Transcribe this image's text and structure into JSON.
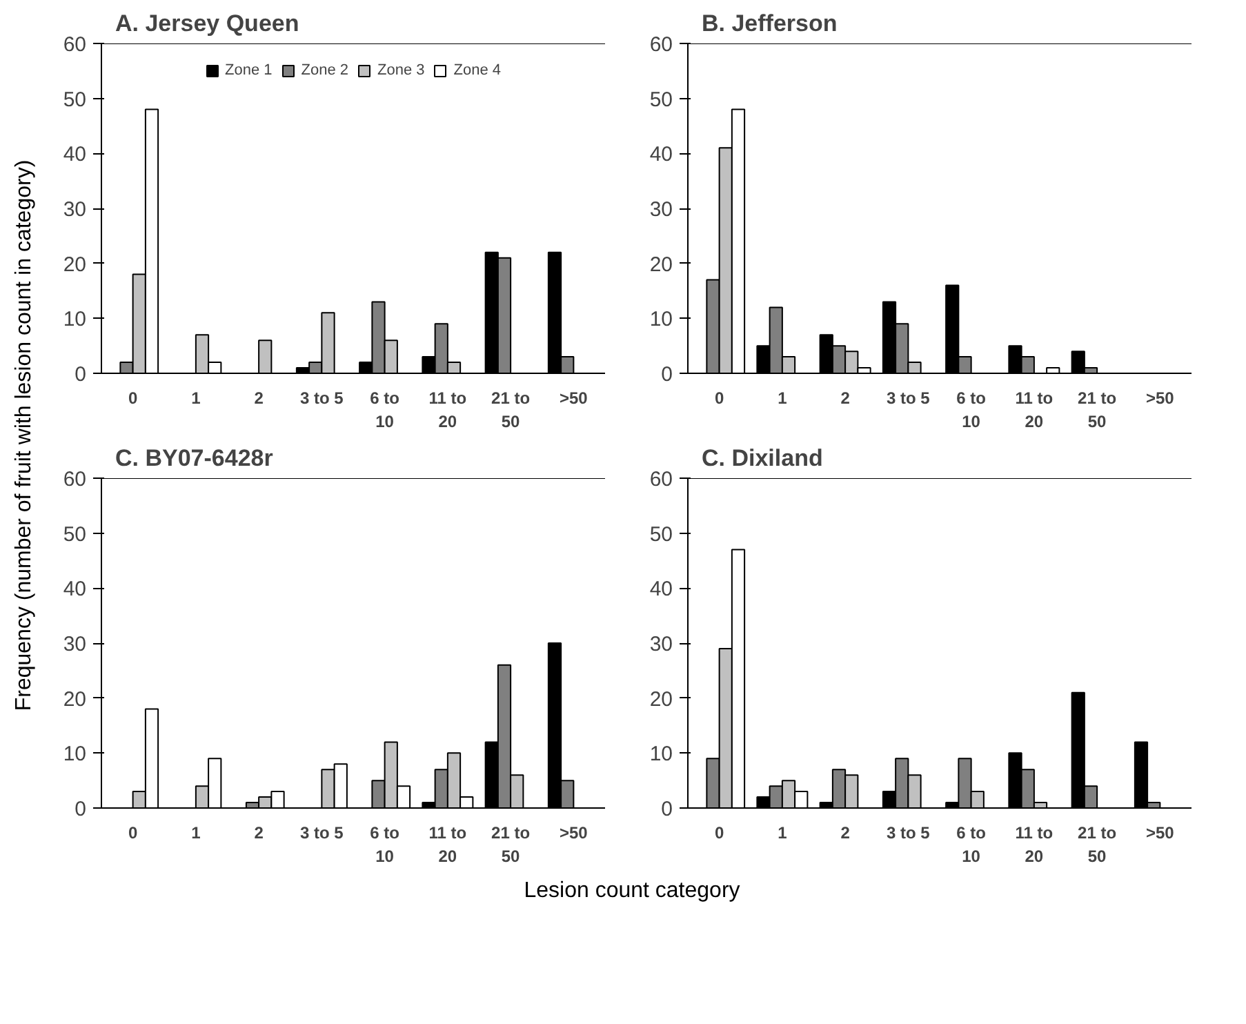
{
  "chart_data": [
    {
      "type": "bar",
      "title": "A.  Jersey Queen",
      "ylabel": "Frequency (number of fruit with lesion count in category)",
      "categories": [
        "0",
        "1",
        "2",
        "3 to 5",
        "6 to 10",
        "11 to 20",
        "21 to 50",
        ">50"
      ],
      "ylim": [
        0,
        60
      ],
      "yticks": [
        0,
        10,
        20,
        30,
        40,
        50,
        60
      ],
      "grid": false,
      "legend": "top",
      "series": [
        {
          "name": "Zone 1",
          "color": "#000000",
          "values": [
            null,
            null,
            null,
            1,
            2,
            3,
            22,
            22
          ]
        },
        {
          "name": "Zone 2",
          "color": "#808080",
          "values": [
            2,
            null,
            null,
            2,
            13,
            9,
            21,
            3
          ]
        },
        {
          "name": "Zone 3",
          "color": "#c0c0c0",
          "values": [
            18,
            7,
            6,
            11,
            6,
            2,
            null,
            null
          ]
        },
        {
          "name": "Zone 4",
          "color": "#ffffff",
          "values": [
            48,
            2,
            null,
            null,
            null,
            null,
            null,
            null
          ]
        }
      ]
    },
    {
      "type": "bar",
      "title": "B. Jefferson",
      "categories": [
        "0",
        "1",
        "2",
        "3 to 5",
        "6 to 10",
        "11 to 20",
        "21 to 50",
        ">50"
      ],
      "ylim": [
        0,
        60
      ],
      "yticks": [
        0,
        10,
        20,
        30,
        40,
        50,
        60
      ],
      "grid": false,
      "series": [
        {
          "color": "#000000",
          "values": [
            null,
            5,
            7,
            13,
            16,
            5,
            4,
            null
          ]
        },
        {
          "color": "#808080",
          "values": [
            17,
            12,
            5,
            9,
            3,
            3,
            1,
            null
          ]
        },
        {
          "color": "#c0c0c0",
          "values": [
            41,
            3,
            4,
            2,
            null,
            null,
            null,
            null
          ]
        },
        {
          "color": "#ffffff",
          "values": [
            48,
            null,
            1,
            null,
            null,
            1,
            null,
            null
          ]
        }
      ]
    },
    {
      "type": "bar",
      "title": "C. BY07-6428r",
      "categories": [
        "0",
        "1",
        "2",
        "3 to 5",
        "6 to 10",
        "11 to 20",
        "21 to 50",
        ">50"
      ],
      "ylim": [
        0,
        60
      ],
      "yticks": [
        0,
        10,
        20,
        30,
        40,
        50,
        60
      ],
      "grid": false,
      "series": [
        {
          "color": "#000000",
          "values": [
            null,
            null,
            null,
            null,
            null,
            1,
            12,
            30
          ]
        },
        {
          "color": "#808080",
          "values": [
            null,
            null,
            1,
            null,
            5,
            7,
            26,
            5
          ]
        },
        {
          "color": "#c0c0c0",
          "values": [
            3,
            4,
            2,
            7,
            12,
            10,
            6,
            null
          ]
        },
        {
          "color": "#ffffff",
          "values": [
            18,
            9,
            3,
            8,
            4,
            2,
            null,
            null
          ]
        }
      ]
    },
    {
      "type": "bar",
      "title": "C. Dixiland",
      "xlabel": "Lesion count category",
      "categories": [
        "0",
        "1",
        "2",
        "3 to 5",
        "6 to 10",
        "11 to 20",
        "21 to 50",
        ">50"
      ],
      "ylim": [
        0,
        60
      ],
      "yticks": [
        0,
        10,
        20,
        30,
        40,
        50,
        60
      ],
      "grid": false,
      "series": [
        {
          "color": "#000000",
          "values": [
            null,
            2,
            1,
            3,
            1,
            10,
            21,
            12
          ]
        },
        {
          "color": "#808080",
          "values": [
            9,
            4,
            7,
            9,
            9,
            7,
            4,
            1
          ]
        },
        {
          "color": "#c0c0c0",
          "values": [
            29,
            5,
            6,
            6,
            3,
            1,
            null,
            null
          ]
        },
        {
          "color": "#ffffff",
          "values": [
            47,
            3,
            null,
            null,
            null,
            null,
            null,
            null
          ]
        }
      ]
    }
  ]
}
